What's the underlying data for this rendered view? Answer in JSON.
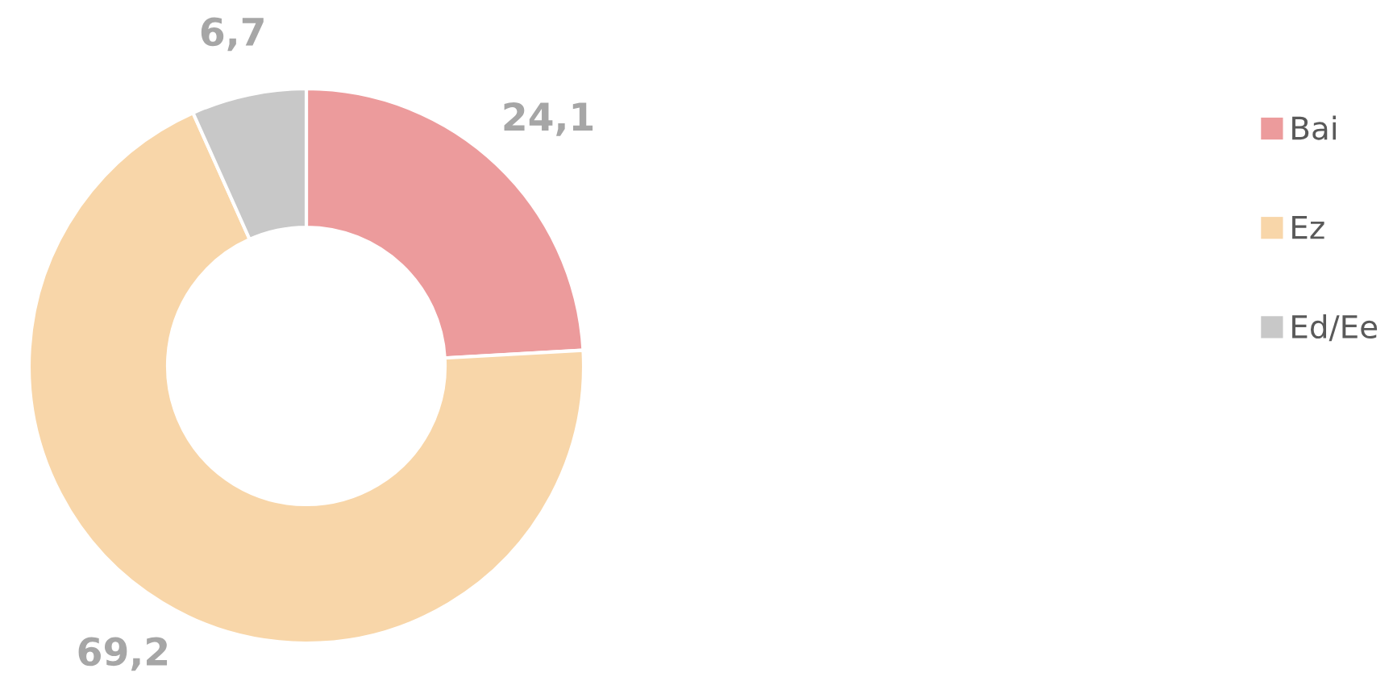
{
  "chart_data": {
    "type": "donut",
    "categories": [
      "Bai",
      "Ez",
      "Ed/Ee"
    ],
    "values": [
      24.1,
      69.2,
      6.7
    ],
    "colors": [
      "#ec9b9c",
      "#f8d6a9",
      "#c8c8c8"
    ],
    "value_labels": [
      "24,1",
      "69,2",
      "6,7"
    ],
    "legend": "right"
  }
}
